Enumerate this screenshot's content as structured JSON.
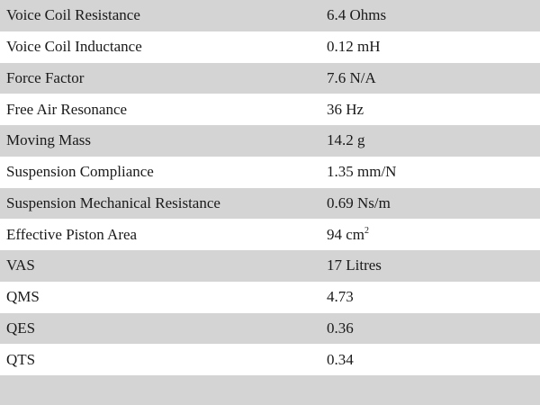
{
  "specs": [
    {
      "label": "Voice Coil Resistance",
      "value": "6.4 Ohms"
    },
    {
      "label": "Voice Coil Inductance",
      "value": "0.12 mH"
    },
    {
      "label": "Force Factor",
      "value": "7.6 N/A"
    },
    {
      "label": "Free Air Resonance",
      "value": "36 Hz"
    },
    {
      "label": "Moving Mass",
      "value": "14.2 g"
    },
    {
      "label": "Suspension Compliance",
      "value": "1.35 mm/N"
    },
    {
      "label": "Suspension Mechanical Resistance",
      "value": "0.69 Ns/m"
    },
    {
      "label": "Effective Piston Area",
      "value": "94 cm",
      "value_sup": "2"
    },
    {
      "label": "VAS",
      "value": "17 Litres"
    },
    {
      "label": "QMS",
      "value": "4.73"
    },
    {
      "label": "QES",
      "value": "0.36"
    },
    {
      "label": "QTS",
      "value": "0.34"
    }
  ]
}
